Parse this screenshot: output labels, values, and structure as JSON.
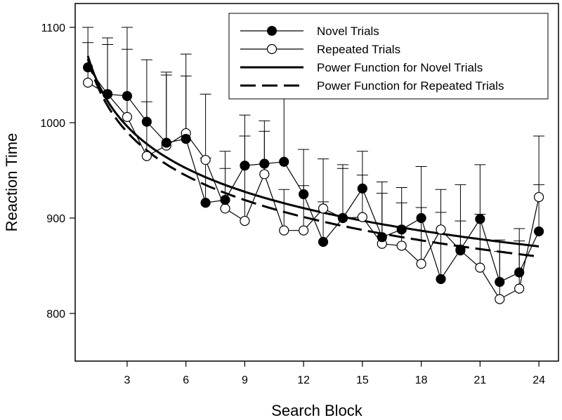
{
  "chart_data": {
    "type": "line",
    "xlabel": "Search Block",
    "ylabel": "Reaction Time",
    "xlim": [
      0.35,
      25
    ],
    "ylim": [
      750,
      1125
    ],
    "xticks": [
      3,
      6,
      9,
      12,
      15,
      18,
      21,
      24
    ],
    "yticks": [
      800,
      900,
      1000,
      1100
    ],
    "grid": false,
    "legend_position": "top-right",
    "x": [
      1,
      2,
      3,
      4,
      5,
      6,
      7,
      8,
      9,
      10,
      11,
      12,
      13,
      14,
      15,
      16,
      17,
      18,
      19,
      20,
      21,
      22,
      23,
      24
    ],
    "series": [
      {
        "name": "Novel Trials",
        "marker": "filled-circle",
        "values": [
          1058,
          1030,
          1028,
          1001,
          979,
          983,
          916,
          919,
          955,
          957,
          959,
          925,
          875,
          900,
          931,
          880,
          888,
          900,
          836,
          867,
          899,
          833,
          843,
          886
        ],
        "error_upper": [
          1100,
          1089,
          1100,
          1066,
          1053,
          1072,
          1030,
          970,
          1008,
          1002,
          1025,
          972,
          962,
          956,
          970,
          938,
          932,
          954,
          930,
          935,
          956,
          877,
          889,
          935
        ]
      },
      {
        "name": "Repeated Trials",
        "marker": "open-circle",
        "values": [
          1042,
          1030,
          1006,
          965,
          976,
          989,
          961,
          910,
          897,
          946,
          887,
          887,
          910,
          900,
          901,
          873,
          871,
          852,
          888,
          866,
          848,
          815,
          826,
          922
        ],
        "error_upper": [
          1084,
          1082,
          1077,
          1022,
          1050,
          1049,
          963,
          952,
          986,
          991,
          930,
          934,
          917,
          952,
          945,
          926,
          916,
          911,
          906,
          897,
          904,
          865,
          876,
          986
        ]
      },
      {
        "name": "Power Function for Novel Trials",
        "style": "solid",
        "function": {
          "a": 1070,
          "b": -0.065
        }
      },
      {
        "name": "Power Function for Repeated Trials",
        "style": "dashed",
        "function": {
          "a": 1067,
          "b": -0.068
        }
      }
    ]
  },
  "colors": {
    "line": "#000000",
    "background": "#ffffff",
    "open_marker_fill": "#ffffff"
  }
}
